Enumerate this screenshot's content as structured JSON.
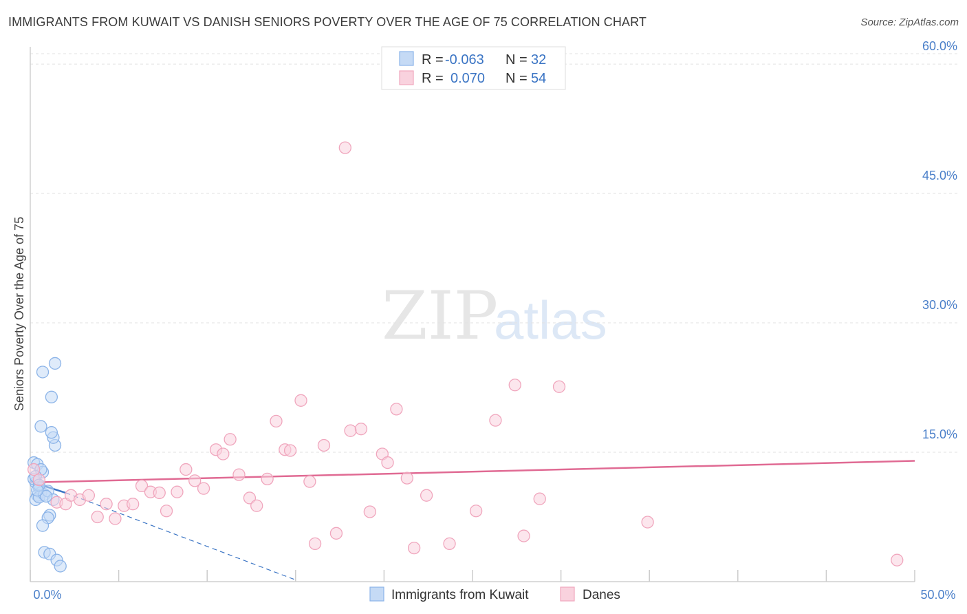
{
  "header": {
    "title": "IMMIGRANTS FROM KUWAIT VS DANISH SENIORS POVERTY OVER THE AGE OF 75 CORRELATION CHART",
    "source": "Source: ZipAtlas.com"
  },
  "watermark": {
    "zip": "ZIP",
    "atlas": "atlas"
  },
  "chart_data": {
    "type": "scatter",
    "title": "IMMIGRANTS FROM KUWAIT VS DANISH SENIORS POVERTY OVER THE AGE OF 75 CORRELATION CHART",
    "xlabel": "",
    "ylabel": "Seniors Poverty Over the Age of 75",
    "xlim": [
      0,
      50
    ],
    "ylim": [
      0,
      62
    ],
    "x_tick_labels": {
      "min": "0.0%",
      "max": "50.0%"
    },
    "y_ticks": [
      15,
      30,
      45,
      60
    ],
    "y_tick_labels": [
      "15.0%",
      "30.0%",
      "45.0%",
      "60.0%"
    ],
    "legend": {
      "rows": [
        {
          "r_label": "R =",
          "r_value": "-0.063",
          "n_label": "N =",
          "n_value": "32"
        },
        {
          "r_label": "R =",
          "r_value": "0.070",
          "n_label": "N =",
          "n_value": "54"
        }
      ]
    },
    "series": [
      {
        "name": "Immigrants from Kuwait",
        "color": "#8cb4e8",
        "fill": "#c5daf5",
        "trend_color": "#3a74c4",
        "trend": {
          "x0": 0.0,
          "y0": 11.6,
          "x1": 2.0,
          "y1": 10.3,
          "dash_x1": 15.0,
          "dash_y1": 0.2
        },
        "points": [
          [
            0.2,
            13.8
          ],
          [
            0.4,
            13.6
          ],
          [
            0.7,
            12.7
          ],
          [
            0.3,
            11.5
          ],
          [
            0.5,
            10.9
          ],
          [
            0.6,
            10.3
          ],
          [
            0.4,
            10.0
          ],
          [
            0.3,
            9.5
          ],
          [
            0.5,
            9.8
          ],
          [
            0.8,
            10.1
          ],
          [
            0.2,
            11.9
          ],
          [
            0.6,
            13.0
          ],
          [
            1.0,
            10.5
          ],
          [
            1.3,
            9.5
          ],
          [
            1.1,
            7.7
          ],
          [
            1.0,
            7.4
          ],
          [
            0.7,
            6.5
          ],
          [
            0.8,
            3.4
          ],
          [
            1.1,
            3.2
          ],
          [
            1.5,
            2.5
          ],
          [
            1.7,
            1.8
          ],
          [
            1.4,
            15.8
          ],
          [
            1.3,
            16.7
          ],
          [
            1.2,
            17.3
          ],
          [
            0.6,
            18.0
          ],
          [
            1.2,
            21.4
          ],
          [
            0.7,
            24.3
          ],
          [
            1.4,
            25.3
          ],
          [
            0.3,
            12.2
          ],
          [
            0.5,
            11.2
          ],
          [
            0.9,
            9.9
          ],
          [
            0.4,
            10.6
          ]
        ]
      },
      {
        "name": "Danes",
        "color": "#f0a6bd",
        "fill": "#f9d2de",
        "trend_color": "#e06a93",
        "trend": {
          "x0": 0.0,
          "y0": 11.5,
          "x1": 50.0,
          "y1": 14.0
        },
        "points": [
          [
            17.8,
            50.3
          ],
          [
            0.2,
            13.0
          ],
          [
            0.5,
            11.8
          ],
          [
            1.5,
            9.2
          ],
          [
            2.0,
            9.0
          ],
          [
            2.3,
            10.0
          ],
          [
            2.8,
            9.5
          ],
          [
            3.3,
            10.0
          ],
          [
            3.8,
            7.5
          ],
          [
            4.3,
            9.0
          ],
          [
            4.8,
            7.3
          ],
          [
            5.3,
            8.8
          ],
          [
            5.8,
            9.0
          ],
          [
            6.3,
            11.1
          ],
          [
            6.8,
            10.4
          ],
          [
            7.3,
            10.3
          ],
          [
            7.7,
            8.2
          ],
          [
            8.3,
            10.4
          ],
          [
            8.8,
            13.0
          ],
          [
            9.3,
            11.7
          ],
          [
            9.8,
            10.8
          ],
          [
            10.5,
            15.3
          ],
          [
            10.9,
            14.8
          ],
          [
            11.3,
            16.5
          ],
          [
            11.8,
            12.4
          ],
          [
            12.4,
            9.7
          ],
          [
            12.8,
            8.8
          ],
          [
            13.4,
            11.9
          ],
          [
            13.9,
            18.6
          ],
          [
            14.4,
            15.3
          ],
          [
            14.7,
            15.2
          ],
          [
            15.3,
            21.0
          ],
          [
            15.8,
            11.6
          ],
          [
            16.1,
            4.4
          ],
          [
            16.6,
            15.8
          ],
          [
            17.3,
            5.6
          ],
          [
            18.1,
            17.5
          ],
          [
            18.7,
            17.7
          ],
          [
            19.2,
            8.1
          ],
          [
            19.9,
            14.8
          ],
          [
            20.2,
            13.8
          ],
          [
            20.7,
            20.0
          ],
          [
            21.3,
            12.0
          ],
          [
            21.7,
            3.9
          ],
          [
            22.4,
            10.0
          ],
          [
            23.7,
            4.4
          ],
          [
            25.2,
            8.2
          ],
          [
            26.3,
            18.7
          ],
          [
            27.4,
            22.8
          ],
          [
            27.9,
            5.3
          ],
          [
            28.8,
            9.6
          ],
          [
            29.9,
            22.6
          ],
          [
            34.9,
            6.9
          ],
          [
            49.0,
            2.5
          ]
        ]
      }
    ]
  }
}
